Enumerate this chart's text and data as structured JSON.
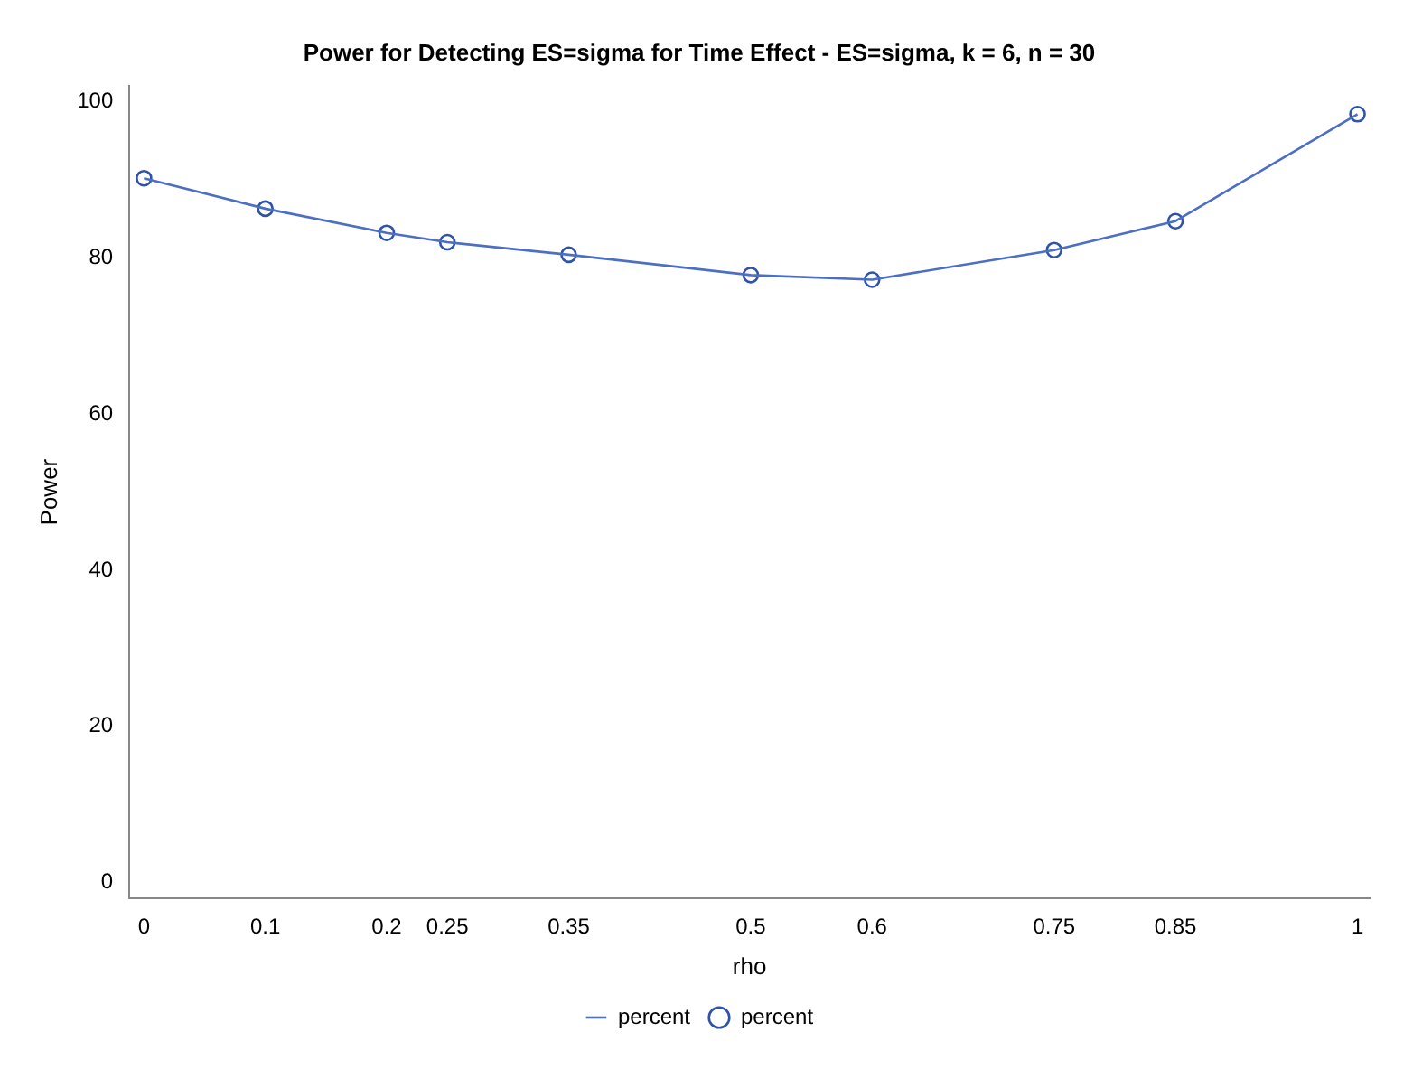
{
  "chart_data": {
    "type": "line",
    "title": "Power for Detecting ES=sigma for Time Effect - ES=sigma, k = 6, n = 30",
    "xlabel": "rho",
    "ylabel": "Power",
    "x": [
      0,
      0.1,
      0.2,
      0.25,
      0.35,
      0.5,
      0.6,
      0.75,
      0.85,
      1
    ],
    "series": [
      {
        "name": "percent",
        "color": "#4c6fc4",
        "marker": "none",
        "line_style": "solid",
        "values": [
          90.2,
          86.3,
          83.2,
          82.0,
          80.4,
          77.8,
          77.2,
          81.0,
          84.7,
          98.4
        ]
      },
      {
        "name": "percent",
        "type": "scatter",
        "color": "#2f53a8",
        "marker": "circle",
        "values": [
          90.2,
          86.3,
          83.2,
          82.0,
          80.4,
          77.8,
          77.2,
          81.0,
          84.7,
          98.4
        ]
      }
    ],
    "xlim": [
      -0.012,
      1.01
    ],
    "xticks": [
      0,
      0.1,
      0.2,
      0.25,
      0.35,
      0.5,
      0.6,
      0.75,
      0.85,
      1
    ],
    "ylim": [
      -2,
      102
    ],
    "yticks": [
      0,
      20,
      40,
      60,
      80,
      100
    ],
    "grid": false,
    "legend": "bottom"
  }
}
